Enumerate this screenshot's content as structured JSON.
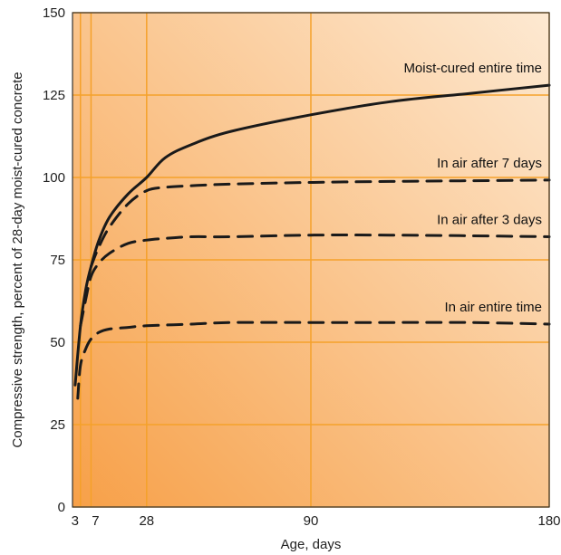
{
  "chart_data": {
    "type": "line",
    "xlabel": "Age, days",
    "ylabel": "Compressive strength, percent of 28-day moist-cured concrete",
    "xlim": [
      0,
      180
    ],
    "ylim": [
      0,
      150
    ],
    "x_ticks": [
      3,
      7,
      28,
      90,
      180
    ],
    "x_tick_labels": [
      "3",
      "7",
      "28",
      "90",
      "180"
    ],
    "y_ticks": [
      0,
      25,
      50,
      75,
      100,
      125,
      150
    ],
    "y_tick_labels": [
      "0",
      "25",
      "50",
      "75",
      "100",
      "125",
      "150"
    ],
    "grid": true,
    "legend": "none",
    "colors": {
      "gradient_light": "#fde9d2",
      "gradient_dark": "#f7a048",
      "grid": "#f5a12a",
      "line": "#1a1a1a"
    },
    "series": [
      {
        "name": "Moist-cured entire time",
        "style": "solid",
        "x": [
          1,
          3,
          5,
          7,
          10,
          14,
          21,
          28,
          35,
          45,
          60,
          90,
          120,
          150,
          180
        ],
        "y": [
          37,
          55,
          66,
          73,
          81,
          88,
          95,
          100,
          106,
          110,
          114,
          119,
          123,
          125.5,
          128
        ]
      },
      {
        "name": "In air after 7 days",
        "style": "dashed",
        "x": [
          7,
          10,
          14,
          21,
          28,
          35,
          45,
          60,
          90,
          120,
          150,
          180
        ],
        "y": [
          73,
          79,
          85,
          92,
          96,
          97,
          97.5,
          98,
          98.5,
          98.8,
          99,
          99.2
        ]
      },
      {
        "name": "In air after 3 days",
        "style": "dashed",
        "x": [
          3,
          5,
          7,
          10,
          14,
          21,
          28,
          35,
          45,
          60,
          90,
          120,
          150,
          180
        ],
        "y": [
          55,
          63,
          70,
          74,
          77,
          80,
          81,
          81.5,
          82,
          82,
          82.5,
          82.5,
          82.3,
          82
        ]
      },
      {
        "name": "In air entire time",
        "style": "dashed",
        "x": [
          2,
          3,
          5,
          7,
          10,
          14,
          21,
          28,
          45,
          60,
          90,
          120,
          150,
          180
        ],
        "y": [
          33,
          43,
          48,
          51,
          53,
          54,
          54.5,
          55,
          55.5,
          56,
          56,
          56,
          56,
          55.5
        ]
      }
    ]
  }
}
